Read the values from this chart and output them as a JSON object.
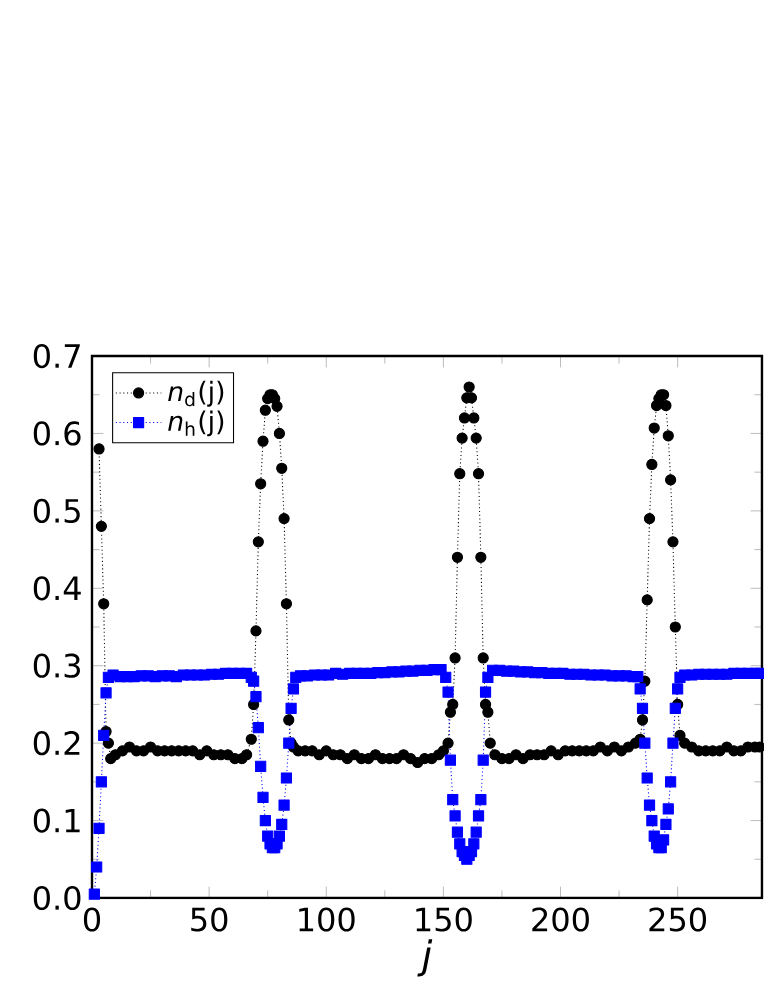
{
  "chart_data": {
    "type": "line",
    "xlabel": "j",
    "legend": "top left",
    "line_style": "dotted",
    "grid": false,
    "xlim": [
      0,
      286
    ],
    "ylim": [
      0,
      0.7
    ],
    "xticks": [
      0,
      50,
      100,
      150,
      200,
      250
    ],
    "yticks": [
      {
        "value": 0,
        "label": "0.0"
      },
      0.1,
      0.2,
      0.3,
      0.4,
      0.5,
      0.6,
      0.7
    ],
    "series": [
      {
        "name": "*n*$_{d}$(j)",
        "color": "#000000",
        "marker": "circle",
        "x": [
          3,
          4,
          5,
          6,
          7,
          8,
          10,
          13,
          16,
          19,
          22,
          25,
          28,
          31,
          34,
          37,
          40,
          43,
          46,
          49,
          52,
          55,
          58,
          61,
          64,
          66,
          68,
          69,
          70,
          71,
          72,
          73,
          74,
          75,
          76,
          77,
          78,
          79,
          80,
          81,
          82,
          83,
          84,
          85,
          86,
          88,
          91,
          94,
          97,
          100,
          103,
          106,
          109,
          112,
          115,
          118,
          121,
          124,
          127,
          130,
          133,
          136,
          139,
          142,
          145,
          148,
          150,
          152,
          153,
          154,
          155,
          156,
          157,
          158,
          159,
          160,
          161,
          162,
          163,
          164,
          165,
          166,
          167,
          168,
          169,
          170,
          172,
          175,
          178,
          181,
          184,
          187,
          190,
          193,
          196,
          199,
          202,
          205,
          208,
          211,
          214,
          217,
          220,
          223,
          226,
          229,
          232,
          234,
          235,
          236,
          237,
          238,
          239,
          240,
          241,
          242,
          243,
          244,
          245,
          246,
          247,
          248,
          249,
          250,
          251,
          253,
          256,
          259,
          262,
          265,
          268,
          271,
          274,
          277,
          280,
          283,
          285
        ],
        "values": [
          0.58,
          0.48,
          0.38,
          0.215,
          0.2,
          0.18,
          0.185,
          0.19,
          0.195,
          0.19,
          0.19,
          0.195,
          0.19,
          0.19,
          0.19,
          0.19,
          0.19,
          0.19,
          0.185,
          0.19,
          0.185,
          0.185,
          0.185,
          0.18,
          0.18,
          0.185,
          0.205,
          0.25,
          0.345,
          0.46,
          0.535,
          0.59,
          0.63,
          0.645,
          0.65,
          0.65,
          0.645,
          0.635,
          0.6,
          0.555,
          0.49,
          0.38,
          0.23,
          0.2,
          0.195,
          0.19,
          0.19,
          0.19,
          0.185,
          0.19,
          0.185,
          0.185,
          0.18,
          0.185,
          0.18,
          0.18,
          0.185,
          0.18,
          0.18,
          0.18,
          0.185,
          0.18,
          0.175,
          0.18,
          0.18,
          0.185,
          0.19,
          0.2,
          0.24,
          0.25,
          0.31,
          0.44,
          0.548,
          0.594,
          0.62,
          0.646,
          0.66,
          0.646,
          0.62,
          0.594,
          0.548,
          0.44,
          0.31,
          0.25,
          0.24,
          0.2,
          0.185,
          0.18,
          0.18,
          0.185,
          0.18,
          0.185,
          0.185,
          0.185,
          0.19,
          0.185,
          0.19,
          0.19,
          0.19,
          0.19,
          0.19,
          0.195,
          0.19,
          0.195,
          0.19,
          0.195,
          0.2,
          0.205,
          0.23,
          0.28,
          0.385,
          0.49,
          0.56,
          0.607,
          0.636,
          0.645,
          0.65,
          0.65,
          0.636,
          0.597,
          0.54,
          0.46,
          0.35,
          0.25,
          0.21,
          0.2,
          0.195,
          0.19,
          0.19,
          0.19,
          0.19,
          0.195,
          0.19,
          0.19,
          0.195,
          0.195,
          0.195
        ]
      },
      {
        "name": "*n*$_{h}$(j)",
        "color": "#0000ff",
        "marker": "square",
        "x": [
          1,
          2,
          3,
          4,
          5,
          6,
          7,
          9,
          12,
          15,
          18,
          21,
          24,
          27,
          30,
          33,
          36,
          39,
          42,
          45,
          48,
          51,
          54,
          57,
          60,
          63,
          66,
          68,
          69,
          70,
          71,
          72,
          73,
          74,
          75,
          76,
          77,
          78,
          79,
          80,
          81,
          82,
          83,
          84,
          85,
          86,
          87,
          89,
          92,
          95,
          98,
          101,
          104,
          107,
          110,
          113,
          116,
          119,
          122,
          125,
          128,
          131,
          134,
          137,
          140,
          143,
          146,
          149,
          151,
          152,
          153,
          154,
          155,
          156,
          157,
          158,
          159,
          160,
          161,
          162,
          163,
          164,
          165,
          166,
          167,
          168,
          169,
          171,
          174,
          177,
          180,
          183,
          186,
          189,
          192,
          195,
          198,
          201,
          204,
          207,
          210,
          213,
          216,
          219,
          222,
          225,
          228,
          231,
          233,
          234,
          235,
          236,
          237,
          238,
          239,
          240,
          241,
          242,
          243,
          244,
          245,
          246,
          247,
          248,
          249,
          250,
          251,
          253,
          256,
          259,
          262,
          265,
          268,
          271,
          274,
          277,
          280,
          283,
          285
        ],
        "values": [
          0.005,
          0.04,
          0.09,
          0.15,
          0.21,
          0.265,
          0.285,
          0.288,
          0.286,
          0.286,
          0.286,
          0.287,
          0.287,
          0.286,
          0.287,
          0.287,
          0.286,
          0.288,
          0.288,
          0.288,
          0.288,
          0.289,
          0.289,
          0.29,
          0.29,
          0.29,
          0.29,
          0.285,
          0.28,
          0.26,
          0.22,
          0.17,
          0.13,
          0.1,
          0.08,
          0.07,
          0.065,
          0.065,
          0.07,
          0.08,
          0.095,
          0.12,
          0.155,
          0.2,
          0.245,
          0.27,
          0.285,
          0.287,
          0.287,
          0.288,
          0.288,
          0.288,
          0.29,
          0.289,
          0.29,
          0.29,
          0.29,
          0.29,
          0.291,
          0.291,
          0.292,
          0.292,
          0.293,
          0.293,
          0.294,
          0.294,
          0.295,
          0.295,
          0.285,
          0.266,
          0.178,
          0.127,
          0.106,
          0.085,
          0.07,
          0.06,
          0.055,
          0.05,
          0.055,
          0.06,
          0.07,
          0.085,
          0.106,
          0.127,
          0.178,
          0.266,
          0.285,
          0.294,
          0.294,
          0.293,
          0.293,
          0.292,
          0.292,
          0.291,
          0.291,
          0.29,
          0.29,
          0.29,
          0.289,
          0.289,
          0.289,
          0.288,
          0.288,
          0.288,
          0.287,
          0.287,
          0.287,
          0.286,
          0.286,
          0.27,
          0.245,
          0.2,
          0.155,
          0.12,
          0.1,
          0.08,
          0.07,
          0.065,
          0.065,
          0.075,
          0.095,
          0.115,
          0.15,
          0.2,
          0.245,
          0.27,
          0.285,
          0.288,
          0.288,
          0.289,
          0.289,
          0.289,
          0.289,
          0.289,
          0.29,
          0.29,
          0.29,
          0.29,
          0.29
        ]
      }
    ]
  }
}
